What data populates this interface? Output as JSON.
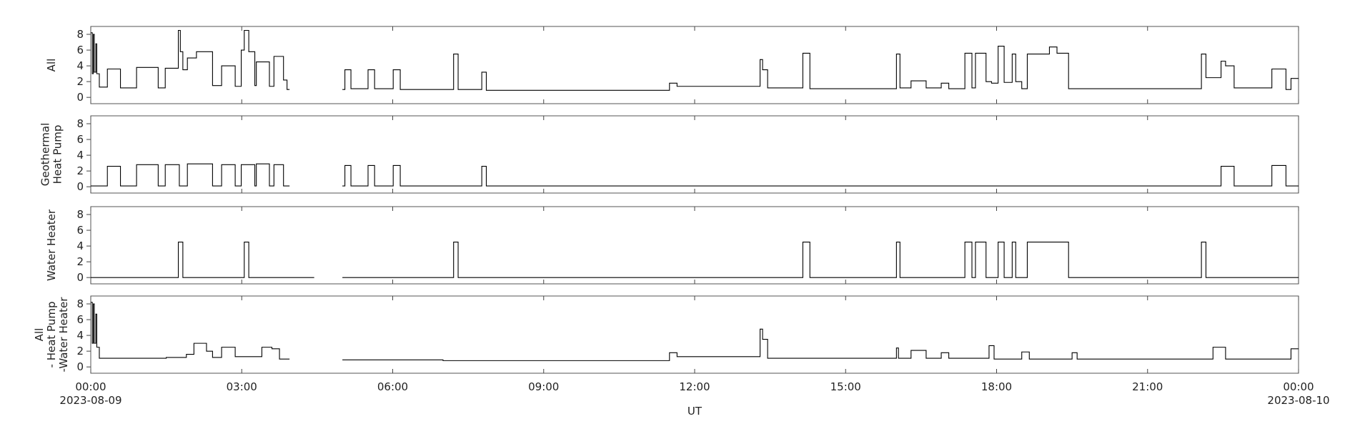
{
  "chart_data": [
    {
      "type": "line",
      "drawstyle": "steps-post",
      "color": "#000000",
      "ylabel": [
        "All"
      ],
      "xlim": [
        0,
        24
      ],
      "ylim": [
        -0.8,
        9
      ],
      "yticks": [
        0,
        2,
        4,
        6,
        8
      ],
      "xticks": [
        0,
        3,
        6,
        9,
        12,
        15,
        18,
        21,
        24
      ],
      "x": [
        0,
        0.03,
        0.05,
        0.07,
        0.1,
        0.12,
        0.17,
        0.33,
        0.59,
        0.91,
        1.34,
        1.48,
        1.74,
        1.78,
        1.83,
        1.92,
        2.1,
        2.42,
        2.6,
        2.87,
        2.99,
        3.05,
        3.14,
        3.26,
        3.29,
        3.55,
        3.64,
        3.83,
        3.9,
        3.95,
        5.0,
        5.05,
        5.17,
        5.51,
        5.64,
        6.01,
        6.15,
        7.21,
        7.3,
        7.77,
        7.86,
        11.5,
        11.65,
        13.3,
        13.35,
        13.45,
        14.15,
        14.29,
        16.01,
        16.08,
        16.3,
        16.6,
        16.9,
        17.05,
        17.37,
        17.51,
        17.58,
        17.79,
        17.9,
        18.03,
        18.15,
        18.31,
        18.38,
        18.5,
        18.61,
        19.05,
        19.2,
        19.43,
        22.07,
        22.16,
        22.46,
        22.55,
        22.72,
        23.47,
        23.75,
        23.85,
        24
      ],
      "values": [
        8.2,
        3,
        8,
        3.2,
        6.8,
        3,
        1.3,
        3.6,
        1.2,
        3.8,
        1.2,
        3.7,
        8.5,
        5.8,
        3.5,
        5,
        5.8,
        1.5,
        4,
        1.4,
        6,
        8.5,
        5.8,
        1.5,
        4.5,
        1.4,
        5.2,
        2.2,
        1,
        null,
        1,
        3.5,
        1.1,
        3.5,
        1.1,
        3.5,
        1,
        5.5,
        1,
        3.2,
        0.9,
        1.8,
        1.4,
        4.8,
        3.5,
        1.2,
        5.6,
        1.1,
        5.5,
        1.2,
        2.1,
        1.2,
        1.8,
        1.1,
        5.6,
        1.2,
        5.6,
        2,
        1.8,
        6.5,
        1.9,
        5.5,
        2,
        1.1,
        5.5,
        6.4,
        5.6,
        1.1,
        5.5,
        2.5,
        4.6,
        4,
        1.2,
        3.6,
        1,
        2.4,
        2.4
      ]
    },
    {
      "type": "line",
      "drawstyle": "steps-post",
      "color": "#000000",
      "ylabel": [
        "Geothermal",
        "Heat Pump"
      ],
      "xlim": [
        0,
        24
      ],
      "ylim": [
        -0.8,
        9
      ],
      "yticks": [
        0,
        2,
        4,
        6,
        8
      ],
      "xticks": [
        0,
        3,
        6,
        9,
        12,
        15,
        18,
        21,
        24
      ],
      "x": [
        0,
        0.33,
        0.59,
        0.91,
        1.34,
        1.48,
        1.76,
        1.92,
        2.42,
        2.6,
        2.87,
        2.99,
        3.26,
        3.29,
        3.55,
        3.64,
        3.83,
        3.95,
        5.0,
        5.05,
        5.17,
        5.51,
        5.64,
        6.01,
        6.15,
        7.77,
        7.86,
        22.46,
        22.72,
        23.47,
        23.75,
        24
      ],
      "values": [
        0.1,
        2.6,
        0.1,
        2.8,
        0.1,
        2.8,
        0.1,
        2.9,
        0.1,
        2.8,
        0.1,
        2.8,
        0.1,
        2.9,
        0.1,
        2.8,
        0.1,
        null,
        0.1,
        2.7,
        0.1,
        2.7,
        0.1,
        2.7,
        0.1,
        2.6,
        0.1,
        2.6,
        0.1,
        2.7,
        0.1,
        0.1
      ]
    },
    {
      "type": "line",
      "drawstyle": "steps-post",
      "color": "#000000",
      "ylabel": [
        "Water Heater"
      ],
      "xlim": [
        0,
        24
      ],
      "ylim": [
        -0.8,
        9
      ],
      "yticks": [
        0,
        2,
        4,
        6,
        8
      ],
      "xticks": [
        0,
        3,
        6,
        9,
        12,
        15,
        18,
        21,
        24
      ],
      "x": [
        0,
        1.74,
        1.83,
        3.05,
        3.14,
        4.44,
        5.0,
        7.21,
        7.3,
        14.15,
        14.29,
        16.01,
        16.08,
        17.37,
        17.51,
        17.58,
        17.79,
        18.03,
        18.15,
        18.31,
        18.38,
        18.61,
        19.43,
        22.07,
        22.16,
        24
      ],
      "values": [
        0,
        4.5,
        0,
        4.5,
        0,
        null,
        0,
        4.5,
        0,
        4.5,
        0,
        4.5,
        0,
        4.5,
        0,
        4.5,
        0,
        4.5,
        0,
        4.5,
        0,
        4.5,
        0,
        4.5,
        0,
        0
      ]
    },
    {
      "type": "line",
      "drawstyle": "steps-post",
      "color": "#000000",
      "ylabel": [
        "All",
        "- Heat Pump",
        "-Water Heater"
      ],
      "xlim": [
        0,
        24
      ],
      "ylim": [
        -0.8,
        9
      ],
      "yticks": [
        0,
        2,
        4,
        6,
        8
      ],
      "xticks": [
        {
          "value": 0,
          "label": "00:00"
        },
        {
          "value": 3,
          "label": "03:00"
        },
        {
          "value": 6,
          "label": "06:00"
        },
        {
          "value": 9,
          "label": "09:00"
        },
        {
          "value": 12,
          "label": "12:00"
        },
        {
          "value": 15,
          "label": "15:00"
        },
        {
          "value": 18,
          "label": "18:00"
        },
        {
          "value": 21,
          "label": "21:00"
        },
        {
          "value": 24,
          "label": "00:00"
        }
      ],
      "xtick_dates": [
        {
          "value": 0,
          "label": "2023-08-09"
        },
        {
          "value": 24,
          "label": "2023-08-10"
        }
      ],
      "xlabel": "UT",
      "x": [
        0,
        0.03,
        0.05,
        0.07,
        0.1,
        0.12,
        0.17,
        1.5,
        1.9,
        2.05,
        2.3,
        2.42,
        2.6,
        2.87,
        3.4,
        3.6,
        3.75,
        3.95,
        5.0,
        7.0,
        11.5,
        11.65,
        13.3,
        13.35,
        13.45,
        16.01,
        16.05,
        16.3,
        16.6,
        16.9,
        17.05,
        17.85,
        17.95,
        18.5,
        18.65,
        19.5,
        19.6,
        22.3,
        22.55,
        23.85,
        24
      ],
      "values": [
        8.2,
        3,
        8,
        3,
        6.7,
        2.5,
        1.1,
        1.2,
        1.6,
        3,
        2,
        1.2,
        2.5,
        1.3,
        2.5,
        2.3,
        1,
        null,
        0.9,
        0.8,
        1.8,
        1.3,
        4.8,
        3.5,
        1.1,
        2.4,
        1.1,
        2.1,
        1.1,
        1.8,
        1.1,
        2.7,
        1,
        1.9,
        1,
        1.8,
        1,
        2.5,
        1,
        2.3,
        2.3
      ]
    }
  ]
}
